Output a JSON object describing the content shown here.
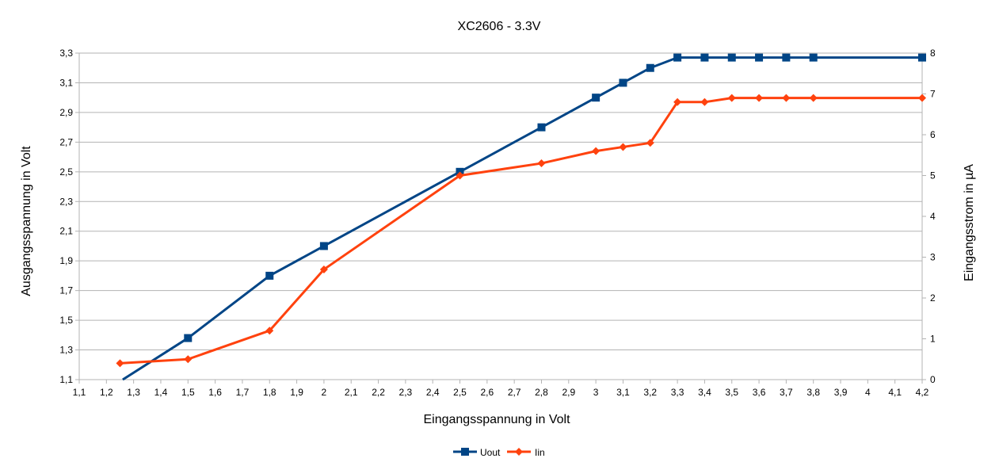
{
  "chart_data": {
    "type": "line",
    "title": "XC2606 - 3.3V",
    "xlabel": "Eingangsspannung in Volt",
    "ylabel": "Ausgangsspannung in Volt",
    "y2label": "Eingangsstrom in µA",
    "xlim": [
      1.1,
      4.2
    ],
    "ylim": [
      1.1,
      3.3
    ],
    "y2lim": [
      0,
      8
    ],
    "x_ticks": [
      "1,1",
      "1,2",
      "1,3",
      "1,4",
      "1,5",
      "1,6",
      "1,7",
      "1,8",
      "1,9",
      "2",
      "2,1",
      "2,2",
      "2,3",
      "2,4",
      "2,5",
      "2,6",
      "2,7",
      "2,8",
      "2,9",
      "3",
      "3,1",
      "3,2",
      "3,3",
      "3,4",
      "3,5",
      "3,6",
      "3,7",
      "3,8",
      "3,9",
      "4",
      "4,1",
      "4,2"
    ],
    "y_ticks": [
      "1,1",
      "1,3",
      "1,5",
      "1,7",
      "1,9",
      "2,1",
      "2,3",
      "2,5",
      "2,7",
      "2,9",
      "3,1",
      "3,3"
    ],
    "y2_ticks": [
      "0",
      "1",
      "2",
      "3",
      "4",
      "5",
      "6",
      "7",
      "8"
    ],
    "grid": true,
    "legend_position": "bottom",
    "series": [
      {
        "name": "Uout",
        "axis": "left",
        "color": "#004586",
        "marker": "square",
        "x": [
          1.26,
          1.5,
          1.8,
          2.0,
          2.5,
          2.8,
          3.0,
          3.1,
          3.2,
          3.3,
          3.4,
          3.5,
          3.6,
          3.7,
          3.8,
          4.2
        ],
        "y": [
          1.1,
          1.38,
          1.8,
          2.0,
          2.5,
          2.8,
          3.0,
          3.1,
          3.2,
          3.27,
          3.27,
          3.27,
          3.27,
          3.27,
          3.27,
          3.27
        ],
        "markers_shown": [
          false,
          true,
          true,
          true,
          true,
          true,
          true,
          true,
          true,
          true,
          true,
          true,
          true,
          true,
          true,
          true
        ]
      },
      {
        "name": "Iin",
        "axis": "right",
        "color": "#ff420e",
        "marker": "diamond",
        "x": [
          1.25,
          1.5,
          1.8,
          2.0,
          2.5,
          2.8,
          3.0,
          3.1,
          3.2,
          3.3,
          3.4,
          3.5,
          3.6,
          3.7,
          3.8,
          4.2
        ],
        "y": [
          0.4,
          0.5,
          1.2,
          2.7,
          5.0,
          5.3,
          5.6,
          5.7,
          5.8,
          6.8,
          6.8,
          6.9,
          6.9,
          6.9,
          6.9,
          6.9
        ],
        "markers_shown": [
          true,
          true,
          true,
          true,
          true,
          true,
          true,
          true,
          true,
          true,
          true,
          true,
          true,
          true,
          true,
          true
        ]
      }
    ]
  }
}
